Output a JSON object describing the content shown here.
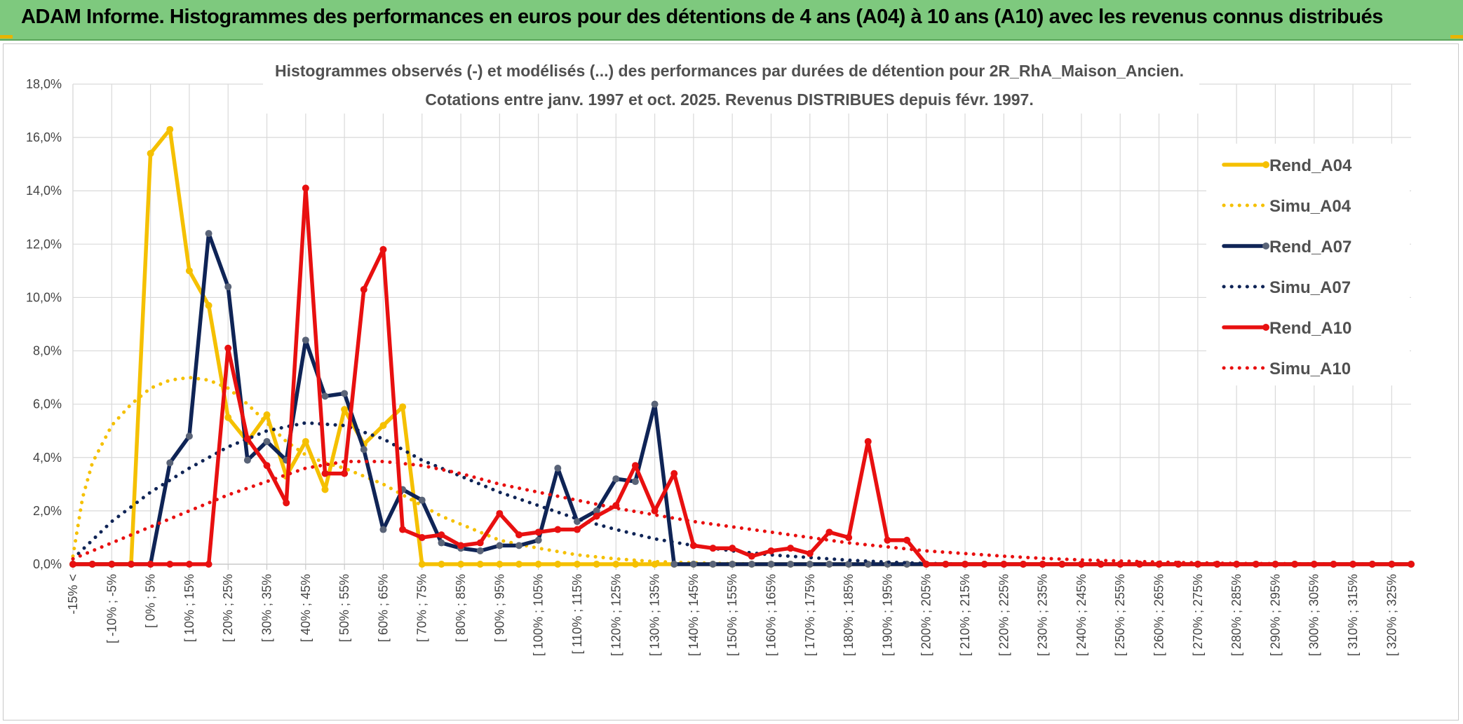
{
  "header": {
    "title": "ADAM Informe. Histogrammes des performances en euros pour des détentions de 4 ans (A04) à 10 ans (A10) avec les revenus connus distribués"
  },
  "chart_data": {
    "type": "line",
    "title_line1": "Histogrammes observés (-) et modélisés (...) des performances par durées de détention pour 2R_RhA_Maison_Ancien.",
    "title_line2": "Cotations entre janv. 1997 et oct. 2025. Revenus DISTRIBUES depuis févr. 1997.",
    "ylim": [
      0,
      18
    ],
    "yticks": [
      "0,0%",
      "2,0%",
      "4,0%",
      "6,0%",
      "8,0%",
      "10,0%",
      "12,0%",
      "14,0%",
      "16,0%",
      "18,0%"
    ],
    "xtick_labels": [
      "-15% <",
      "[ -10% ; -5%",
      "[ 0% ; 5%",
      "[ 10% ; 15%",
      "[ 20% ; 25%",
      "[ 30% ; 35%",
      "[ 40% ; 45%",
      "[ 50% ; 55%",
      "[ 60% ; 65%",
      "[ 70% ; 75%",
      "[ 80% ; 85%",
      "[ 90% ; 95%",
      "[ 100% ; 105%",
      "[ 110% ; 115%",
      "[ 120% ; 125%",
      "[ 130% ; 135%",
      "[ 140% ; 145%",
      "[ 150% ; 155%",
      "[ 160% ; 165%",
      "[ 170% ; 175%",
      "[ 180% ; 185%",
      "[ 190% ; 195%",
      "[ 200% ; 205%",
      "[ 210% ; 215%",
      "[ 220% ; 225%",
      "[ 230% ; 235%",
      "[ 240% ; 245%",
      "[ 250% ; 255%",
      "[ 260% ; 265%",
      "[ 270% ; 275%",
      "[ 280% ; 285%",
      "[ 290% ; 295%",
      "[ 300% ; 305%",
      "[ 310% ; 315%",
      "[ 320% ; 325%"
    ],
    "n_bins": 70,
    "series": [
      {
        "name": "Rend_A04",
        "style": "solid",
        "color": "#f5c000",
        "values": [
          0,
          0,
          0,
          0,
          15.4,
          16.3,
          11.0,
          9.7,
          5.5,
          4.6,
          5.6,
          3.3,
          4.6,
          2.8,
          5.8,
          4.5,
          5.2,
          5.9,
          0,
          0,
          0,
          0,
          0,
          0,
          0,
          0,
          0,
          0,
          0,
          0,
          0,
          0,
          0,
          0,
          0,
          0,
          0,
          0,
          0,
          0,
          0,
          0,
          0,
          0,
          0,
          0,
          0,
          0,
          0,
          0,
          0,
          0,
          0,
          0,
          0,
          0,
          0,
          0,
          0,
          0,
          0,
          0,
          0,
          0,
          0,
          0,
          0,
          0,
          0,
          0
        ]
      },
      {
        "name": "Simu_A04",
        "style": "dotted",
        "color": "#f5c000",
        "points": [
          [
            0,
            0.3
          ],
          [
            0.5,
            2.5
          ],
          [
            1,
            3.8
          ],
          [
            2,
            5.2
          ],
          [
            3,
            6.0
          ],
          [
            4,
            6.6
          ],
          [
            5,
            6.9
          ],
          [
            6,
            7.0
          ],
          [
            7,
            6.9
          ],
          [
            8,
            6.6
          ],
          [
            9,
            6.0
          ],
          [
            10,
            5.3
          ],
          [
            11,
            4.6
          ],
          [
            12,
            4.1
          ],
          [
            13,
            3.8
          ],
          [
            14,
            3.6
          ],
          [
            15,
            3.3
          ],
          [
            16,
            3.0
          ],
          [
            17,
            2.6
          ],
          [
            18,
            2.2
          ],
          [
            19,
            1.8
          ],
          [
            20,
            1.5
          ],
          [
            21,
            1.2
          ],
          [
            22,
            0.9
          ],
          [
            24,
            0.6
          ],
          [
            26,
            0.35
          ],
          [
            28,
            0.2
          ],
          [
            30,
            0.1
          ],
          [
            32,
            0.05
          ],
          [
            34,
            0.02
          ],
          [
            36,
            0
          ]
        ]
      },
      {
        "name": "Rend_A07",
        "style": "solid",
        "color": "#0f2456",
        "values": [
          0,
          0,
          0,
          0,
          0,
          3.8,
          4.8,
          12.4,
          10.4,
          3.9,
          4.6,
          3.9,
          8.4,
          6.3,
          6.4,
          4.3,
          1.3,
          2.8,
          2.4,
          0.8,
          0.6,
          0.5,
          0.7,
          0.7,
          0.9,
          3.6,
          1.6,
          2.0,
          3.2,
          3.1,
          6.0,
          0,
          0,
          0,
          0,
          0,
          0,
          0,
          0,
          0,
          0,
          0,
          0,
          0,
          0,
          0,
          0,
          0,
          0,
          0,
          0,
          0,
          0,
          0,
          0,
          0,
          0,
          0,
          0,
          0,
          0,
          0,
          0,
          0,
          0,
          0,
          0,
          0,
          0,
          0
        ]
      },
      {
        "name": "Simu_A07",
        "style": "dotted",
        "color": "#0f2456",
        "points": [
          [
            0,
            0.2
          ],
          [
            2,
            1.6
          ],
          [
            4,
            2.7
          ],
          [
            6,
            3.6
          ],
          [
            8,
            4.4
          ],
          [
            10,
            5.0
          ],
          [
            12,
            5.3
          ],
          [
            14,
            5.2
          ],
          [
            16,
            4.7
          ],
          [
            18,
            3.9
          ],
          [
            20,
            3.3
          ],
          [
            22,
            2.7
          ],
          [
            24,
            2.2
          ],
          [
            26,
            1.7
          ],
          [
            28,
            1.3
          ],
          [
            30,
            0.95
          ],
          [
            32,
            0.7
          ],
          [
            34,
            0.5
          ],
          [
            36,
            0.35
          ],
          [
            38,
            0.25
          ],
          [
            40,
            0.15
          ],
          [
            42,
            0.08
          ],
          [
            44,
            0.03
          ],
          [
            46,
            0
          ]
        ]
      },
      {
        "name": "Rend_A10",
        "style": "solid",
        "color": "#e81010",
        "values": [
          0,
          0,
          0,
          0,
          0,
          0,
          0,
          0,
          8.1,
          4.7,
          3.7,
          2.3,
          14.1,
          3.4,
          3.4,
          10.3,
          11.8,
          1.3,
          1.0,
          1.1,
          0.7,
          0.8,
          1.9,
          1.1,
          1.2,
          1.3,
          1.3,
          1.8,
          2.2,
          3.7,
          2.0,
          3.4,
          0.7,
          0.6,
          0.6,
          0.3,
          0.5,
          0.6,
          0.4,
          1.2,
          1.0,
          4.6,
          0.9,
          0.9,
          0,
          0,
          0,
          0,
          0,
          0,
          0,
          0,
          0,
          0,
          0,
          0,
          0,
          0,
          0,
          0,
          0,
          0,
          0,
          0,
          0,
          0,
          0,
          0,
          0,
          0
        ]
      },
      {
        "name": "Simu_A10",
        "style": "dotted",
        "color": "#e81010",
        "points": [
          [
            0,
            0.2
          ],
          [
            2,
            0.8
          ],
          [
            4,
            1.4
          ],
          [
            6,
            2.0
          ],
          [
            8,
            2.6
          ],
          [
            10,
            3.1
          ],
          [
            12,
            3.6
          ],
          [
            14,
            3.85
          ],
          [
            16,
            3.85
          ],
          [
            18,
            3.7
          ],
          [
            20,
            3.4
          ],
          [
            22,
            3.0
          ],
          [
            24,
            2.7
          ],
          [
            26,
            2.4
          ],
          [
            28,
            2.1
          ],
          [
            30,
            1.85
          ],
          [
            32,
            1.6
          ],
          [
            34,
            1.4
          ],
          [
            36,
            1.2
          ],
          [
            38,
            1.0
          ],
          [
            40,
            0.8
          ],
          [
            42,
            0.65
          ],
          [
            44,
            0.5
          ],
          [
            46,
            0.4
          ],
          [
            48,
            0.3
          ],
          [
            50,
            0.22
          ],
          [
            52,
            0.16
          ],
          [
            54,
            0.12
          ],
          [
            56,
            0.08
          ],
          [
            58,
            0.05
          ],
          [
            60,
            0.03
          ],
          [
            62,
            0.02
          ],
          [
            64,
            0.01
          ],
          [
            69,
            0
          ]
        ]
      }
    ],
    "legend": [
      "Rend_A04",
      "Simu_A04",
      "Rend_A07",
      "Simu_A07",
      "Rend_A10",
      "Simu_A10"
    ]
  }
}
